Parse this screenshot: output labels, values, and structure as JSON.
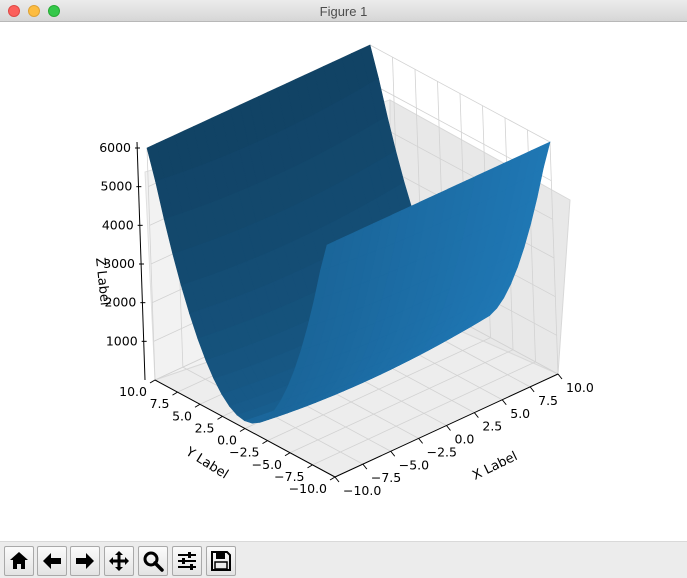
{
  "window": {
    "title": "Figure 1"
  },
  "toolbar": {
    "buttons": [
      {
        "name": "home-button",
        "icon": "home-icon"
      },
      {
        "name": "back-button",
        "icon": "arrow-left-icon"
      },
      {
        "name": "forward-button",
        "icon": "arrow-right-icon"
      },
      {
        "name": "pan-button",
        "icon": "move-icon"
      },
      {
        "name": "zoom-button",
        "icon": "magnifier-icon"
      },
      {
        "name": "configure-subplots-button",
        "icon": "sliders-icon"
      },
      {
        "name": "save-button",
        "icon": "floppy-disk-icon"
      }
    ]
  },
  "chart_data": {
    "type": "surface3d",
    "function": "z = x^2 + 60*y^2 style bowl; shown as z ranging up to ~6000 along y = ±10",
    "xlabel": "X Label",
    "ylabel": "Y Label",
    "zlabel": "Z Label",
    "xlim": [
      -10,
      10
    ],
    "ylim": [
      -10,
      10
    ],
    "zlim": [
      0,
      6000
    ],
    "x_ticks": [
      "−10.0",
      "−7.5",
      "−5.0",
      "−2.5",
      "0.0",
      "2.5",
      "5.0",
      "7.5",
      "10.0"
    ],
    "y_ticks": [
      "−10.0",
      "−7.5",
      "−5.0",
      "−2.5",
      "0.0",
      "2.5",
      "5.0",
      "7.5",
      "10.0"
    ],
    "z_ticks": [
      "1000",
      "2000",
      "3000",
      "4000",
      "5000",
      "6000"
    ],
    "surface_color": "#1f77b4",
    "grid": true
  }
}
